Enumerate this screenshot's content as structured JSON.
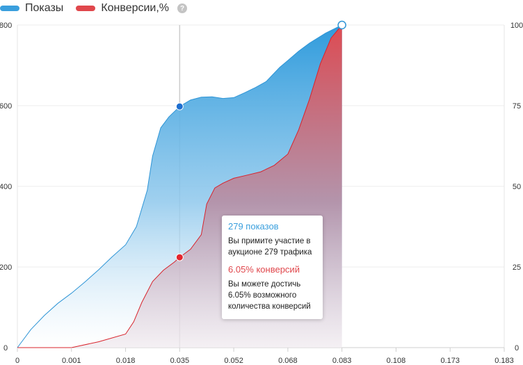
{
  "legend": {
    "items": [
      {
        "label": "Показы",
        "color": "#3a9fdd"
      },
      {
        "label": "Конверсии,%",
        "color": "#e0474c"
      }
    ],
    "help_glyph": "?",
    "help_icon": "question-circle-icon"
  },
  "tooltip": {
    "impressions_title": "279 показов",
    "impressions_text": "Вы примите участие в аукционе 279 трафика",
    "conversions_title": "6.05% конверсий",
    "conversions_text": "Вы можете достичь 6.05% возможного количества конверсий"
  },
  "chart_data": {
    "type": "area",
    "x": [
      "0",
      "0.001",
      "0.018",
      "0.035",
      "0.052",
      "0.068",
      "0.083",
      "0.108",
      "0.173",
      "0.183"
    ],
    "x_ticks": [
      "0",
      "0.001",
      "0.018",
      "0.035",
      "0.052",
      "0.068",
      "0.083",
      "0.108",
      "0.173",
      "0.183"
    ],
    "y_left_ticks": [
      "0",
      "200",
      "400",
      "600",
      "800"
    ],
    "y_right_ticks": [
      "0",
      "25",
      "50",
      "75",
      "100"
    ],
    "ylim_left": [
      0,
      800
    ],
    "ylim_right": [
      0,
      100
    ],
    "grid": true,
    "legend_position": "top-left",
    "highlight_x_index": 3,
    "series": [
      {
        "name": "Показы",
        "axis": "left",
        "color": "#3a9fdd",
        "points": [
          [
            0,
            0
          ],
          [
            0.25,
            45
          ],
          [
            0.5,
            80
          ],
          [
            0.75,
            110
          ],
          [
            1,
            135
          ],
          [
            1.25,
            163
          ],
          [
            1.5,
            193
          ],
          [
            1.75,
            225
          ],
          [
            2,
            255
          ],
          [
            2.2,
            300
          ],
          [
            2.4,
            390
          ],
          [
            2.5,
            475
          ],
          [
            2.65,
            545
          ],
          [
            2.8,
            572
          ],
          [
            3,
            598
          ],
          [
            3.2,
            614
          ],
          [
            3.4,
            621
          ],
          [
            3.6,
            622
          ],
          [
            3.8,
            618
          ],
          [
            4,
            620
          ],
          [
            4.2,
            632
          ],
          [
            4.4,
            645
          ],
          [
            4.6,
            660
          ],
          [
            4.85,
            695
          ],
          [
            5,
            712
          ],
          [
            5.2,
            735
          ],
          [
            5.4,
            755
          ],
          [
            5.7,
            780
          ],
          [
            6,
            800
          ]
        ]
      },
      {
        "name": "Конверсии,%",
        "axis": "right",
        "color": "#e0474c",
        "points": [
          [
            0,
            0
          ],
          [
            0.5,
            0
          ],
          [
            1,
            0
          ],
          [
            1.5,
            1.8
          ],
          [
            2,
            4.2
          ],
          [
            2.15,
            8
          ],
          [
            2.3,
            14
          ],
          [
            2.5,
            20.5
          ],
          [
            2.7,
            24
          ],
          [
            2.9,
            26.5
          ],
          [
            3,
            28
          ],
          [
            3.2,
            30.5
          ],
          [
            3.4,
            35
          ],
          [
            3.5,
            44.5
          ],
          [
            3.65,
            49.5
          ],
          [
            3.8,
            51
          ],
          [
            4,
            52.5
          ],
          [
            4.25,
            53.5
          ],
          [
            4.5,
            54.5
          ],
          [
            4.75,
            56.5
          ],
          [
            5,
            60
          ],
          [
            5.2,
            67.5
          ],
          [
            5.4,
            77
          ],
          [
            5.6,
            88
          ],
          [
            5.8,
            96
          ],
          [
            6,
            100
          ]
        ]
      }
    ]
  }
}
